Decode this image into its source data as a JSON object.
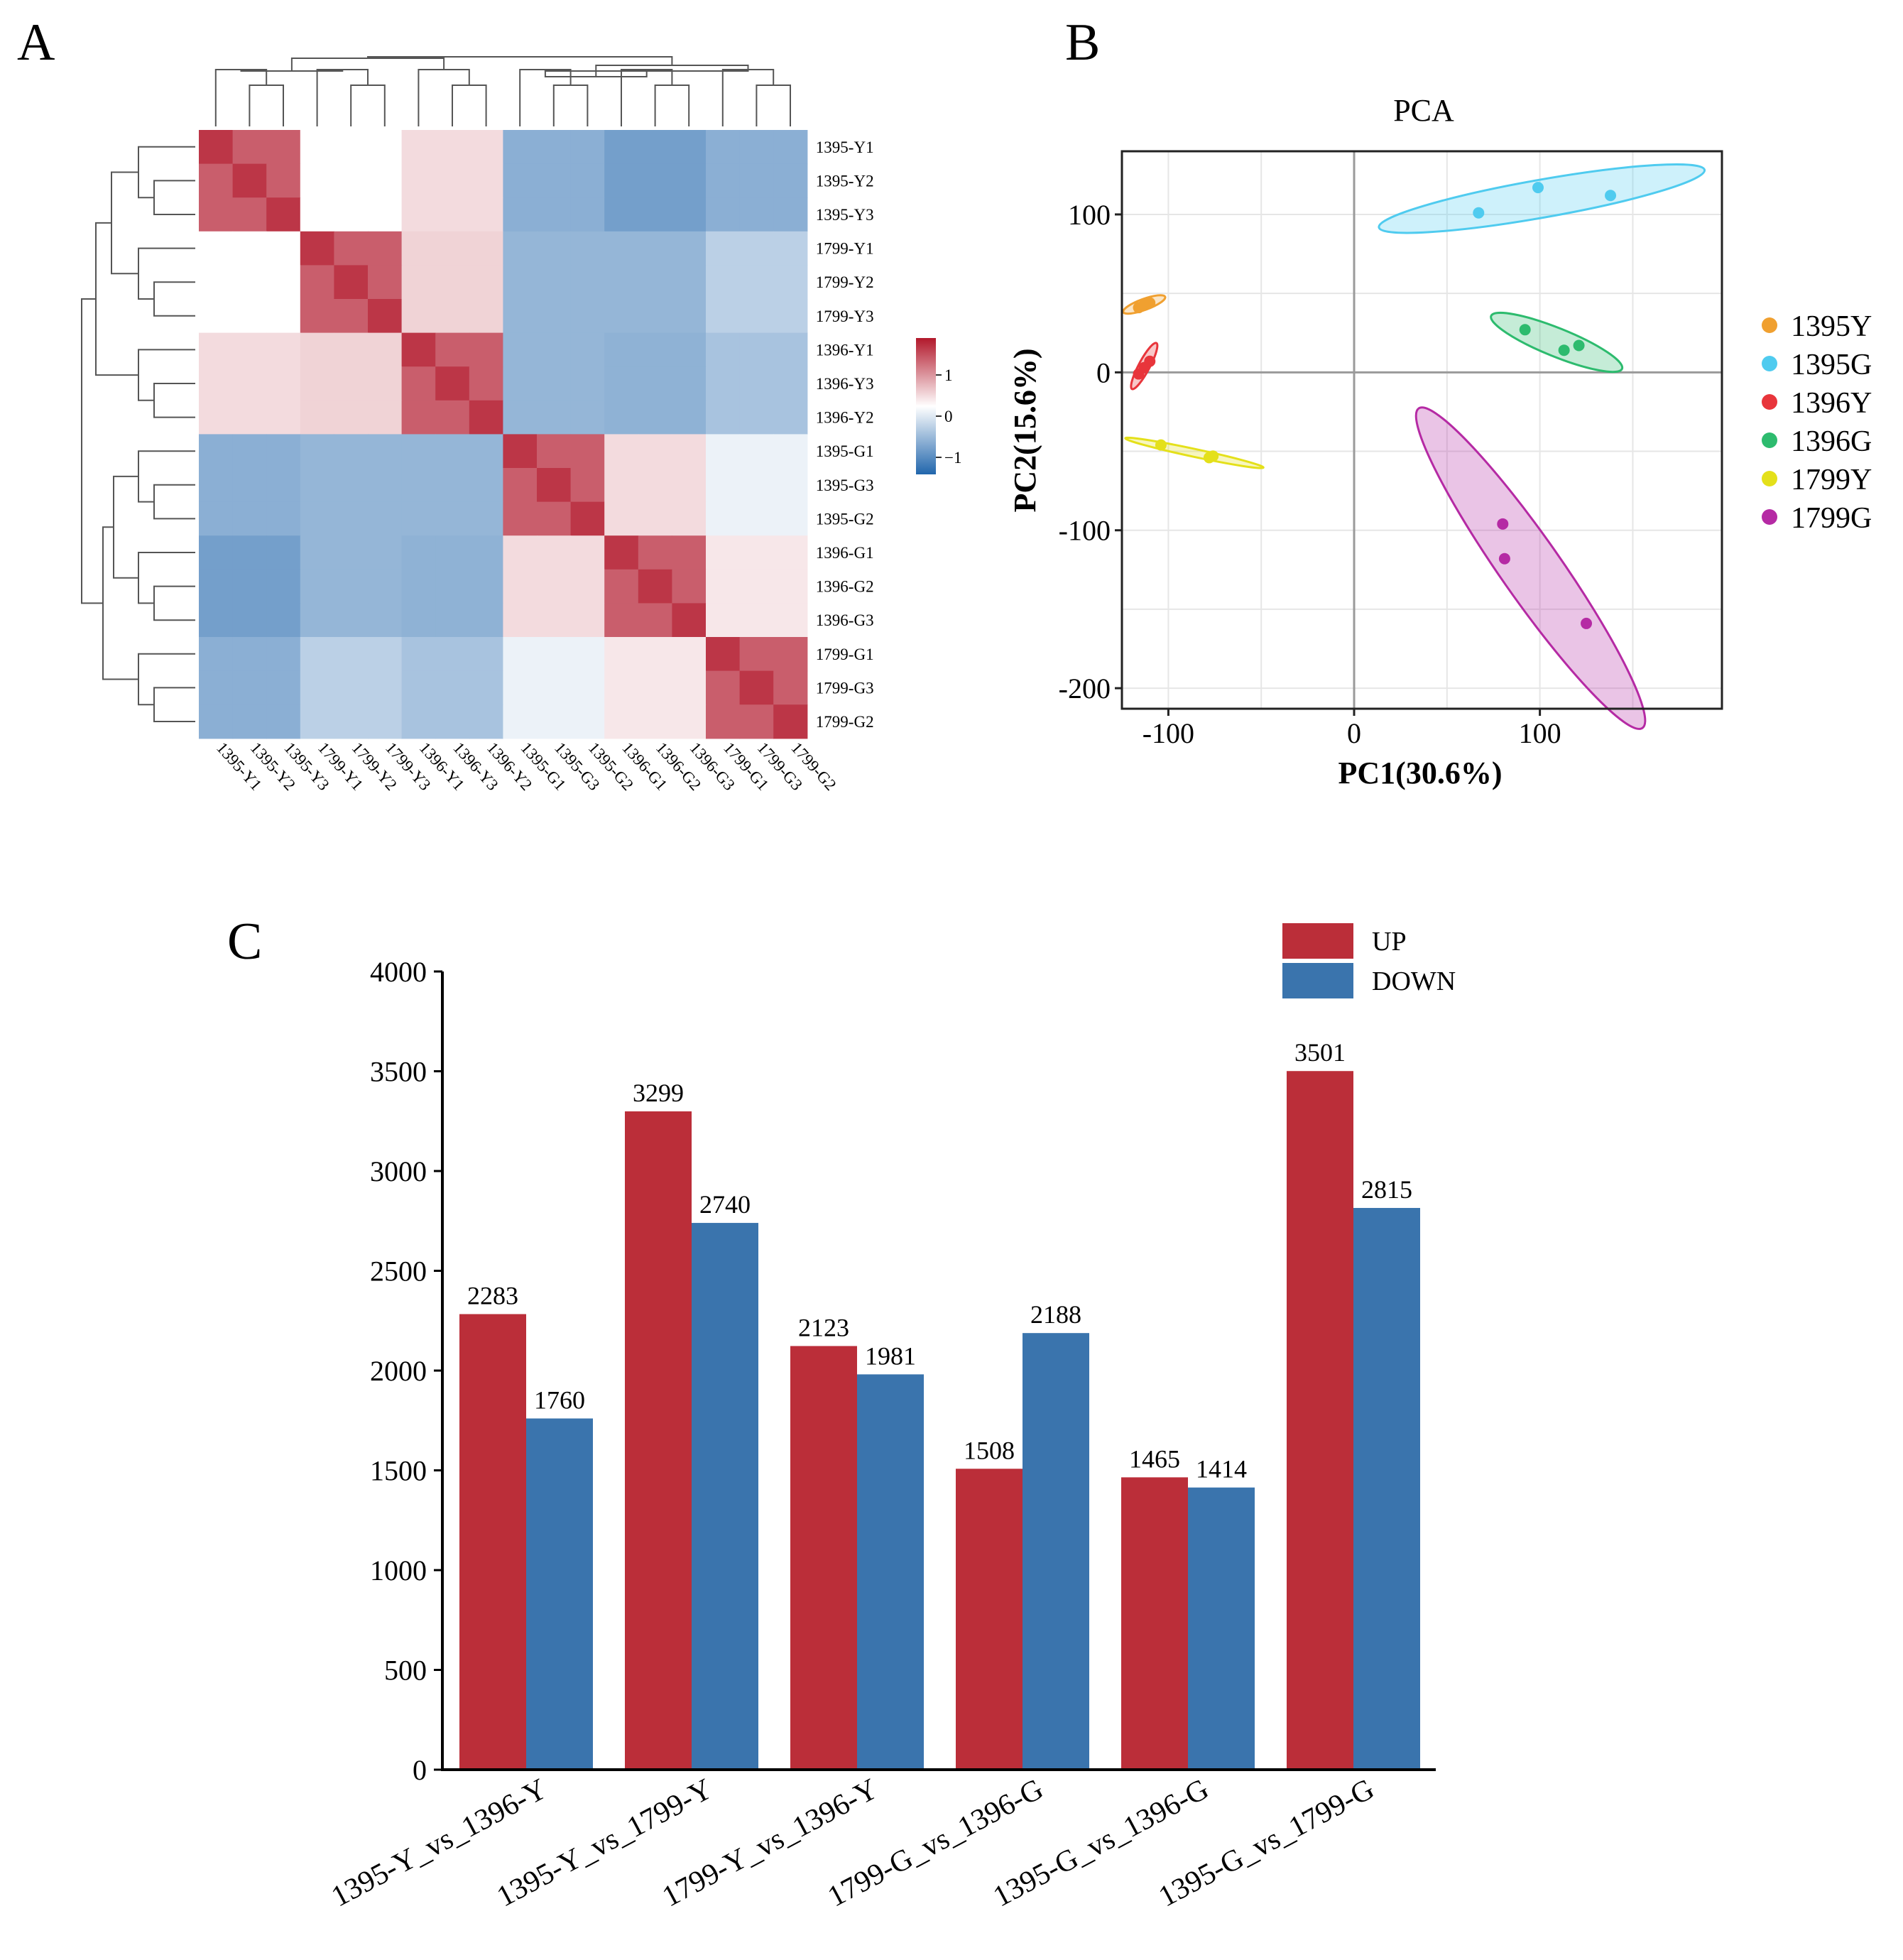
{
  "panels": {
    "a": "A",
    "b": "B",
    "c": "C"
  },
  "chart_data": [
    {
      "type": "heatmap",
      "panel": "A",
      "title": "",
      "samples": [
        "1395-Y1",
        "1395-Y2",
        "1395-Y3",
        "1799-Y1",
        "1799-Y2",
        "1799-Y3",
        "1396-Y1",
        "1396-Y3",
        "1396-Y2",
        "1395-G1",
        "1395-G3",
        "1395-G2",
        "1396-G1",
        "1396-G2",
        "1396-G3",
        "1799-G1",
        "1799-G3",
        "1799-G2"
      ],
      "groups": [
        "1395-Y",
        "1799-Y",
        "1396-Y",
        "1395-G",
        "1396-G",
        "1799-G"
      ],
      "group_size": 3,
      "within_group_value": 0.8,
      "diagonal_value": 1,
      "group_similarity": [
        [
          0.8,
          0.0,
          0.18,
          -0.6,
          -0.72,
          -0.6
        ],
        [
          0.0,
          0.8,
          0.22,
          -0.55,
          -0.55,
          -0.35
        ],
        [
          0.18,
          0.22,
          0.8,
          -0.55,
          -0.58,
          -0.45
        ],
        [
          -0.6,
          -0.55,
          -0.55,
          0.8,
          0.18,
          -0.1
        ],
        [
          -0.72,
          -0.55,
          -0.58,
          0.18,
          0.8,
          0.12
        ],
        [
          -0.6,
          -0.35,
          -0.45,
          -0.1,
          0.12,
          0.8
        ]
      ],
      "colorbar": {
        "ticks": [
          "1",
          "0",
          "−1"
        ],
        "range": [
          -1.2,
          1.2
        ]
      },
      "colors": {
        "high": "#b2182b",
        "mid": "#ffffff",
        "low": "#2166ac"
      }
    },
    {
      "type": "scatter",
      "panel": "B",
      "title": "PCA",
      "xlabel": "PC1(30.6%)",
      "ylabel": "PC2(15.6%)",
      "xlim": [
        -125,
        198
      ],
      "ylim": [
        -213,
        140
      ],
      "xticks": [
        -100,
        0,
        100
      ],
      "xtick_labels": [
        "-100",
        "0",
        "100"
      ],
      "yticks": [
        -200,
        -100,
        0,
        100
      ],
      "ytick_labels": [
        "-200",
        "-100",
        "0",
        "100"
      ],
      "legend_position": "right",
      "series": [
        {
          "name": "1395Y",
          "color": "#f0a030",
          "points": [
            [
              -113,
              43
            ],
            [
              -110,
              44
            ],
            [
              -116,
              41
            ]
          ],
          "ellipse": {
            "cx": -113,
            "cy": 43,
            "rx": 12,
            "ry": 3.5,
            "angle_deg": 20
          }
        },
        {
          "name": "1395G",
          "color": "#4fcbef",
          "points": [
            [
              67,
              101
            ],
            [
              99,
              117
            ],
            [
              138,
              112
            ]
          ],
          "ellipse": {
            "cx": 101,
            "cy": 110,
            "rx": 89,
            "ry": 12,
            "angle_deg": 10
          }
        },
        {
          "name": "1396Y",
          "color": "#e8353b",
          "points": [
            [
              -113,
              3
            ],
            [
              -110,
              7
            ],
            [
              -116,
              -1
            ]
          ],
          "ellipse": {
            "cx": -113,
            "cy": 4,
            "rx": 14,
            "ry": 3.5,
            "angle_deg": 62
          }
        },
        {
          "name": "1396G",
          "color": "#2dbb6e",
          "points": [
            [
              92,
              27
            ],
            [
              113,
              14
            ],
            [
              121,
              17
            ]
          ],
          "ellipse": {
            "cx": 109,
            "cy": 19,
            "rx": 38,
            "ry": 9,
            "angle_deg": -22
          }
        },
        {
          "name": "1799Y",
          "color": "#e4e01a",
          "points": [
            [
              -104,
              -46
            ],
            [
              -78,
              -54
            ],
            [
              -76,
              -53
            ]
          ],
          "ellipse": {
            "cx": -86,
            "cy": -51,
            "rx": 38,
            "ry": 2.5,
            "angle_deg": -12
          }
        },
        {
          "name": "1799G",
          "color": "#b52aa4",
          "points": [
            [
              80,
              -96
            ],
            [
              81,
              -118
            ],
            [
              125,
              -159
            ]
          ],
          "ellipse": {
            "cx": 95,
            "cy": -124,
            "rx": 105,
            "ry": 19,
            "angle_deg": -55
          }
        }
      ]
    },
    {
      "type": "bar",
      "panel": "C",
      "title": "",
      "xlabel": "",
      "ylabel": "",
      "categories": [
        "1395-Y_vs_1396-Y",
        "1395-Y_vs_1799-Y",
        "1799-Y_vs_1396-Y",
        "1799-G_vs_1396-G",
        "1395-G_vs_1396-G",
        "1395-G_vs_1799-G"
      ],
      "series": [
        {
          "name": "UP",
          "color": "#bb2e39",
          "values": [
            2283,
            3299,
            2123,
            1508,
            1465,
            3501
          ]
        },
        {
          "name": "DOWN",
          "color": "#3a74ad",
          "values": [
            1760,
            2740,
            1981,
            2188,
            1414,
            2815
          ]
        }
      ],
      "ylim": [
        0,
        4000
      ],
      "yticks": [
        0,
        500,
        1000,
        1500,
        2000,
        2500,
        3000,
        3500,
        4000
      ],
      "legend_position": "top-right",
      "grid": false
    }
  ]
}
